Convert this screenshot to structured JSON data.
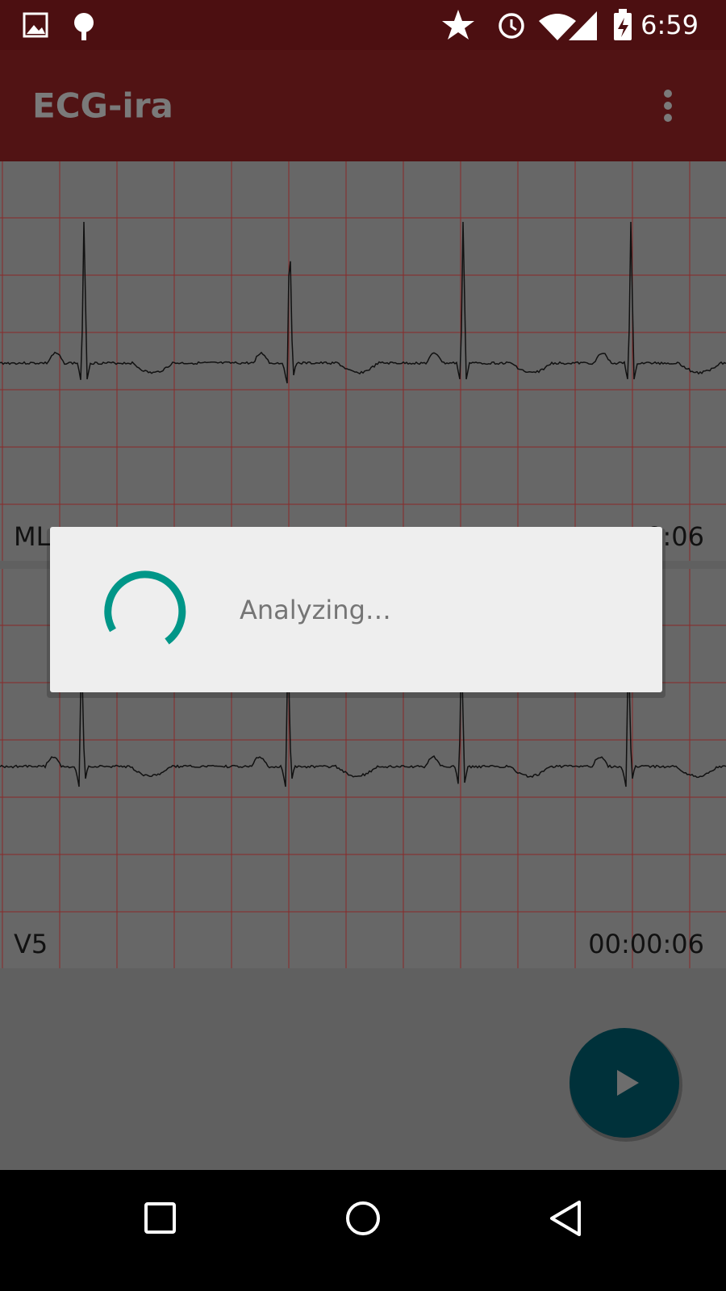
{
  "status_bar": {
    "time": "6:59"
  },
  "app_bar": {
    "title": "ECG-ira"
  },
  "strips": [
    {
      "lead": "ML",
      "time": "0:06"
    },
    {
      "lead": "V5",
      "time": "00:00:06"
    }
  ],
  "dialog": {
    "message": "Analyzing…"
  }
}
